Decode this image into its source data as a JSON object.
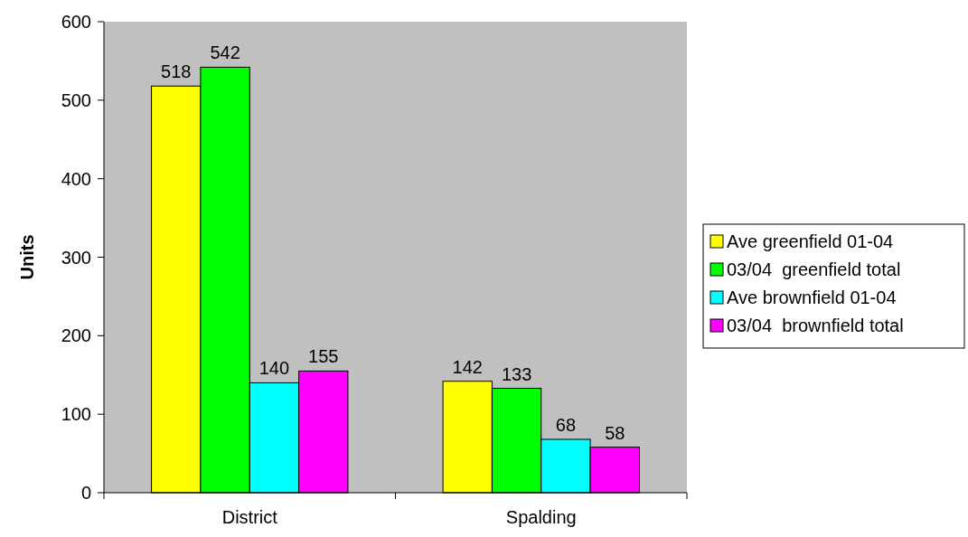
{
  "chart_data": {
    "type": "bar",
    "ylabel": "Units",
    "categories": [
      "District",
      "Spalding"
    ],
    "series": [
      {
        "name": "Ave greenfield 01-04",
        "color": "#ffff00",
        "values": [
          518,
          142
        ]
      },
      {
        "name": "03/04  greenfield total",
        "color": "#00ff00",
        "values": [
          542,
          133
        ]
      },
      {
        "name": "Ave brownfield 01-04",
        "color": "#00ffff",
        "values": [
          140,
          68
        ]
      },
      {
        "name": "03/04  brownfield total",
        "color": "#ff00ff",
        "values": [
          155,
          58
        ]
      }
    ],
    "ylim": [
      0,
      600
    ],
    "yticks": [
      0,
      100,
      200,
      300,
      400,
      500,
      600
    ],
    "data_labels": true,
    "grid": false,
    "legend": "right"
  }
}
